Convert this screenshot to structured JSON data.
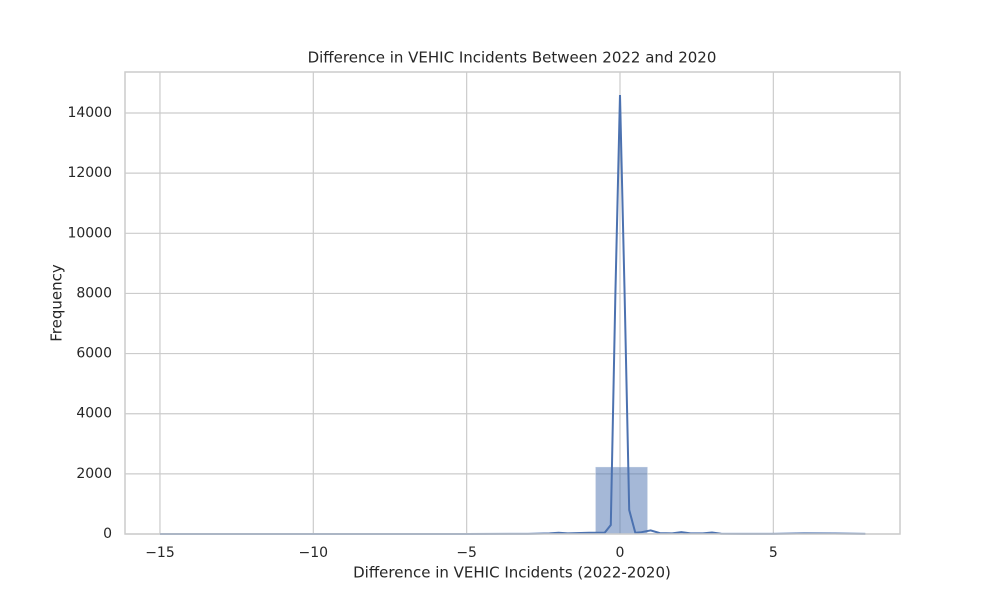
{
  "chart_data": {
    "type": "histogram",
    "title": "Difference in VEHIC Incidents Between 2022 and 2020",
    "xlabel": "Difference in VEHIC Incidents (2022-2020)",
    "ylabel": "Frequency",
    "bins": [
      -14.4,
      -12.7,
      -11.0,
      -9.3,
      -7.6,
      -5.9,
      -4.2,
      -2.5,
      -0.8,
      0.9,
      2.6,
      4.3,
      6.0,
      7.7
    ],
    "counts": [
      3,
      0,
      0,
      0,
      0,
      0,
      2,
      25,
      2230,
      35,
      8,
      14,
      12
    ],
    "color": "#4c72b0",
    "kde": {
      "color": "#4c72b0",
      "x": [
        -15,
        -10,
        -5,
        -3,
        -2.3,
        -2,
        -1.7,
        -1,
        -0.5,
        -0.3,
        -0.15,
        0,
        0.15,
        0.3,
        0.5,
        0.7,
        1,
        1.3,
        1.7,
        2,
        2.3,
        2.7,
        3,
        3.3,
        4,
        5,
        6,
        7,
        8
      ],
      "values": [
        0,
        0,
        0,
        5,
        20,
        40,
        20,
        40,
        40,
        300,
        8000,
        14600,
        8000,
        800,
        40,
        60,
        120,
        30,
        20,
        60,
        20,
        20,
        50,
        10,
        5,
        5,
        20,
        15,
        5
      ]
    },
    "xlim": [
      -16.14,
      9.13
    ],
    "ylim": [
      0,
      15364
    ],
    "xticks": [
      {
        "value": -15,
        "label": "−15"
      },
      {
        "value": -10,
        "label": "−10"
      },
      {
        "value": -5,
        "label": "−5"
      },
      0,
      5
    ],
    "yticks": [
      0,
      2000,
      4000,
      6000,
      8000,
      10000,
      12000,
      14000
    ],
    "grid": true
  }
}
